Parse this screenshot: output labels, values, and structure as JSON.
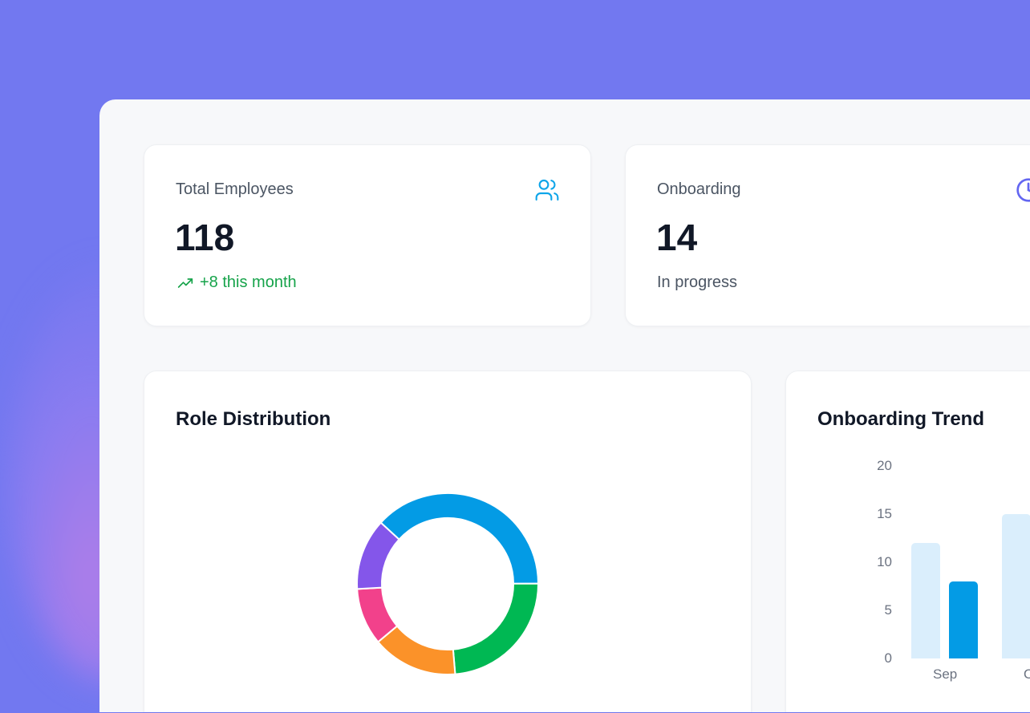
{
  "stats": [
    {
      "label": "Total Employees",
      "value": "118",
      "sub": "+8 this month",
      "icon": "users-icon",
      "sub_icon": "trending-up-icon"
    },
    {
      "label": "Onboarding",
      "value": "14",
      "sub": "In progress",
      "icon": "clock-icon"
    }
  ],
  "colors": {
    "background": "#7278f0",
    "accent_green": "#16a34a",
    "icon_blue": "#0ea5e9",
    "icon_purple": "#6366f1"
  },
  "chart_data": [
    {
      "type": "pie",
      "title": "Role Distribution",
      "donut": true,
      "values": [
        45,
        28,
        18,
        12,
        15
      ],
      "colors": [
        "#039be5",
        "#00b853",
        "#fb9229",
        "#f2418b",
        "#8456ea"
      ]
    },
    {
      "type": "bar",
      "title": "Onboarding Trend",
      "ylim": [
        0,
        20
      ],
      "yticks": [
        0,
        5,
        10,
        15,
        20
      ],
      "categories": [
        "Sep",
        "Oct"
      ],
      "series": [
        {
          "values": [
            12,
            15
          ],
          "color": "#daeefc"
        },
        {
          "values": [
            8,
            null
          ],
          "color": "#039be5"
        }
      ]
    }
  ]
}
